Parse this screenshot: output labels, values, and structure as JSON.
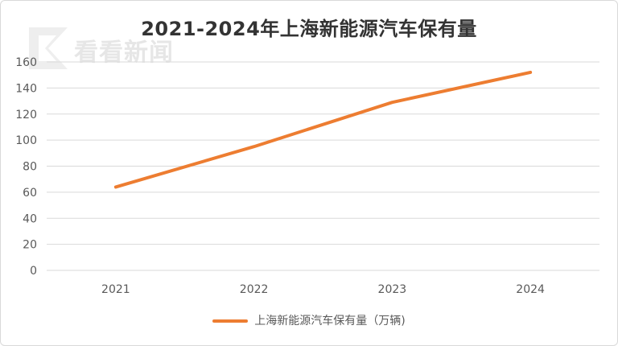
{
  "chart_data": {
    "type": "line",
    "title": "2021-2024年上海新能源汽车保有量",
    "categories": [
      "2021",
      "2022",
      "2023",
      "2024"
    ],
    "series": [
      {
        "name": "上海新能源汽车保有量（万辆)",
        "values": [
          64,
          95,
          129,
          152
        ],
        "color": "#ed7d31"
      }
    ],
    "ylim": [
      0,
      160
    ],
    "yticks": [
      0,
      20,
      40,
      60,
      80,
      100,
      120,
      140,
      160
    ],
    "grid": true,
    "legend": "bottom"
  },
  "watermark": {
    "text": "看看新闻",
    "icon": "kankan-logo-icon"
  }
}
